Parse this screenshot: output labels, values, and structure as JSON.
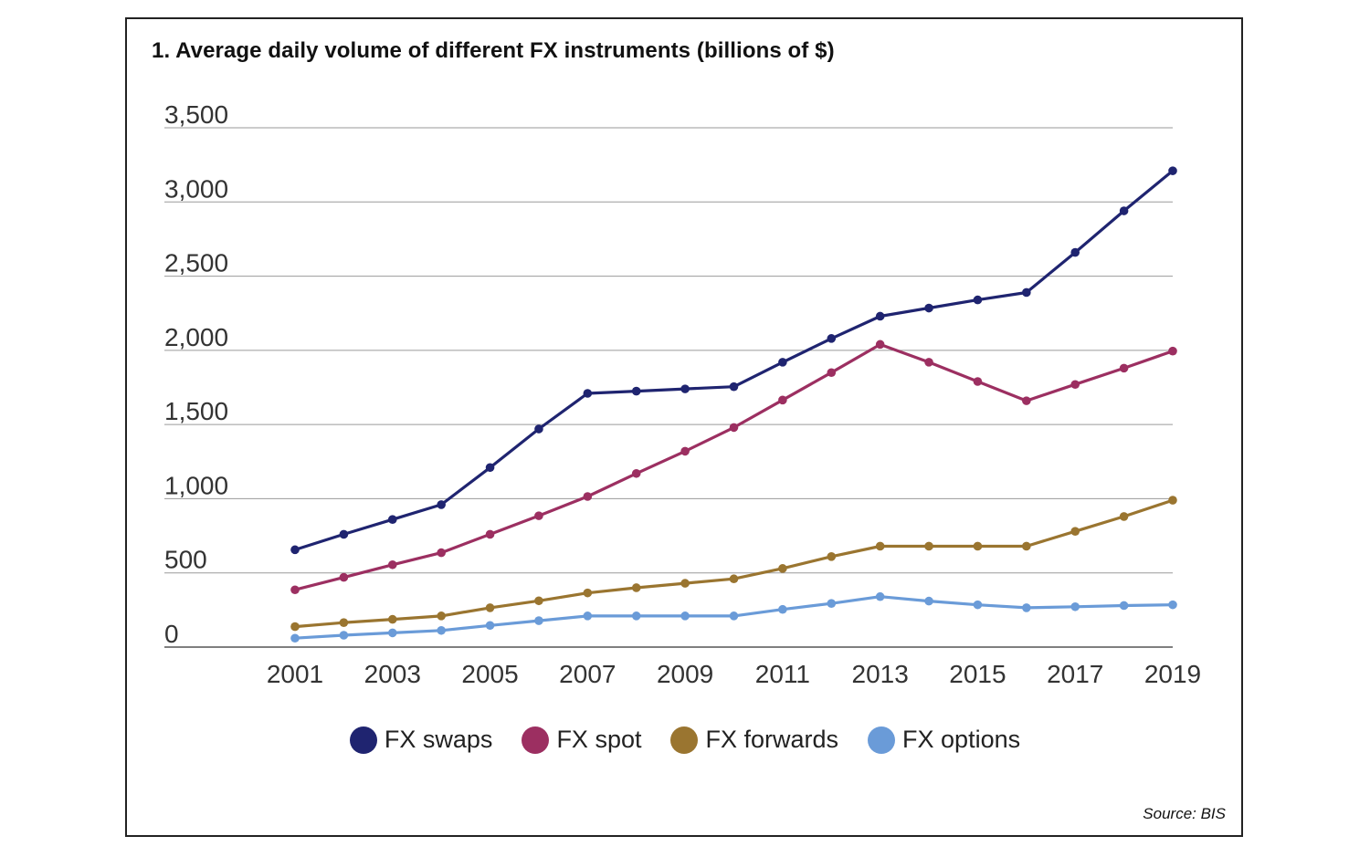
{
  "title": "1. Average daily volume of different FX instruments (billions of $)",
  "source": "Source: BIS",
  "chart_data": {
    "type": "line",
    "title": "1. Average daily volume of different FX instruments (billions of $)",
    "xlabel": "",
    "ylabel": "",
    "ylim": [
      0,
      3500
    ],
    "y_ticks": [
      0,
      500,
      1000,
      1500,
      2000,
      2500,
      3000,
      3500
    ],
    "y_tick_labels": [
      "0",
      "500",
      "1,000",
      "1,500",
      "2,000",
      "2,500",
      "3,000",
      "3,500"
    ],
    "x": [
      2001,
      2002,
      2003,
      2004,
      2005,
      2006,
      2007,
      2008,
      2009,
      2010,
      2011,
      2012,
      2013,
      2014,
      2015,
      2016,
      2017,
      2018,
      2019
    ],
    "x_tick_labels": [
      "2001",
      "2003",
      "2005",
      "2007",
      "2009",
      "2011",
      "2013",
      "2015",
      "2017",
      "2019"
    ],
    "grid": true,
    "legend_position": "bottom-center",
    "series": [
      {
        "name": "FX swaps",
        "color": "#1f2470",
        "values": [
          656,
          760,
          860,
          960,
          1210,
          1470,
          1710,
          1725,
          1740,
          1755,
          1920,
          2080,
          2230,
          2285,
          2340,
          2390,
          2660,
          2940,
          3210
        ]
      },
      {
        "name": "FX spot",
        "color": "#9c2f61",
        "values": [
          386,
          470,
          555,
          636,
          760,
          885,
          1015,
          1170,
          1320,
          1480,
          1665,
          1850,
          2040,
          1920,
          1790,
          1660,
          1770,
          1880,
          1995
        ]
      },
      {
        "name": "FX forwards",
        "color": "#9a7530",
        "values": [
          138,
          165,
          187,
          210,
          265,
          312,
          365,
          400,
          430,
          460,
          530,
          610,
          680,
          680,
          680,
          680,
          780,
          880,
          990
        ]
      },
      {
        "name": "FX options",
        "color": "#6a9bd8",
        "values": [
          60,
          80,
          96,
          112,
          146,
          178,
          210,
          210,
          210,
          210,
          254,
          294,
          340,
          310,
          285,
          265,
          272,
          280,
          285
        ]
      }
    ]
  }
}
